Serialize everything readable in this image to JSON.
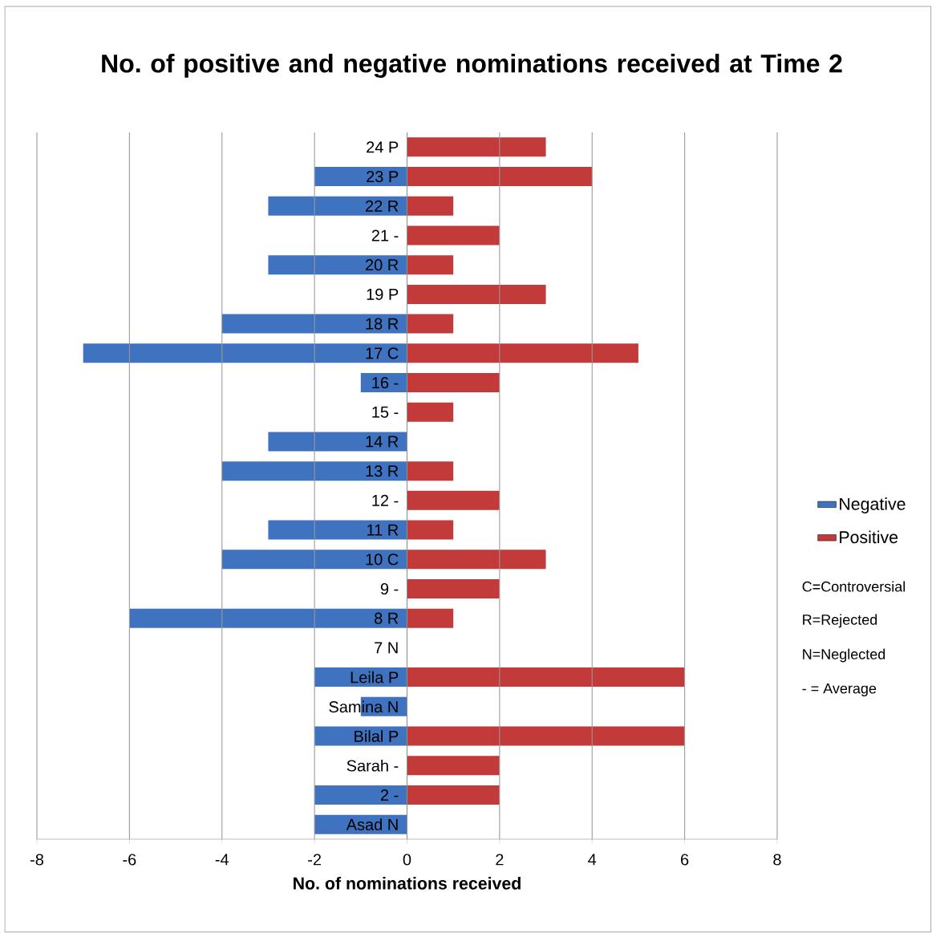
{
  "chart_data": {
    "type": "bar",
    "orientation": "horizontal",
    "stacked": true,
    "title": "No. of positive and negative nominations received at Time 2",
    "xlabel": "No. of nominations received",
    "categories": [
      "24 P",
      "23 P",
      "22 R",
      "21 -",
      "20 R",
      "19 P",
      "18 R",
      "17 C",
      "16 -",
      "15 -",
      "14 R",
      "13 R",
      "12 -",
      "11 R",
      "10 C",
      "9 -",
      "8 R",
      "7 N",
      "Leila P",
      "Samina N",
      "Bilal P",
      "Sarah -",
      "2 -",
      "Asad N"
    ],
    "series": [
      {
        "name": "Negative",
        "color": "#3f72bf",
        "values": [
          0,
          -2,
          -3,
          0,
          -3,
          0,
          -4,
          -7,
          -1,
          0,
          -3,
          -4,
          0,
          -3,
          -4,
          0,
          -6,
          0,
          -2,
          -1,
          -2,
          0,
          -2,
          -2
        ]
      },
      {
        "name": "Positive",
        "color": "#c23a3a",
        "values": [
          3,
          4,
          1,
          2,
          1,
          3,
          1,
          5,
          2,
          1,
          0,
          1,
          2,
          1,
          3,
          2,
          1,
          0,
          6,
          0,
          6,
          2,
          2,
          0
        ]
      }
    ],
    "xlim": [
      -8,
      8
    ],
    "xticks": [
      -8,
      -6,
      -4,
      -2,
      0,
      2,
      4,
      6,
      8
    ],
    "grid": "x",
    "legend": "right",
    "annotations": [
      "C=Controversial",
      "R=Rejected",
      "N=Neglected",
      "- = Average"
    ]
  }
}
